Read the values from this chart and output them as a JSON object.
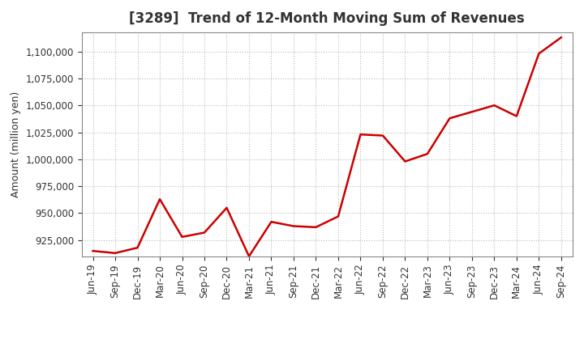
{
  "title": "[3289]  Trend of 12-Month Moving Sum of Revenues",
  "ylabel": "Amount (million yen)",
  "x_labels": [
    "Jun-19",
    "Sep-19",
    "Dec-19",
    "Mar-20",
    "Jun-20",
    "Sep-20",
    "Dec-20",
    "Mar-21",
    "Jun-21",
    "Sep-21",
    "Dec-21",
    "Mar-22",
    "Jun-22",
    "Sep-22",
    "Dec-22",
    "Mar-23",
    "Jun-23",
    "Sep-23",
    "Dec-23",
    "Mar-24",
    "Jun-24",
    "Sep-24"
  ],
  "values": [
    915000,
    913000,
    918000,
    963000,
    928000,
    932000,
    955000,
    910000,
    942000,
    938000,
    937000,
    947000,
    1023000,
    1022000,
    998000,
    1005000,
    1038000,
    1044000,
    1050000,
    1040000,
    1098000,
    1113000
  ],
  "line_color": "#cc0000",
  "line_width": 1.8,
  "ylim_min": 910000,
  "ylim_max": 1118000,
  "ytick_values": [
    925000,
    950000,
    975000,
    1000000,
    1025000,
    1050000,
    1075000,
    1100000
  ],
  "background_color": "#ffffff",
  "plot_bg_color": "#ffffff",
  "grid_color": "#bbbbbb",
  "title_fontsize": 12,
  "title_color": "#333333",
  "axis_label_fontsize": 9,
  "tick_fontsize": 8.5
}
